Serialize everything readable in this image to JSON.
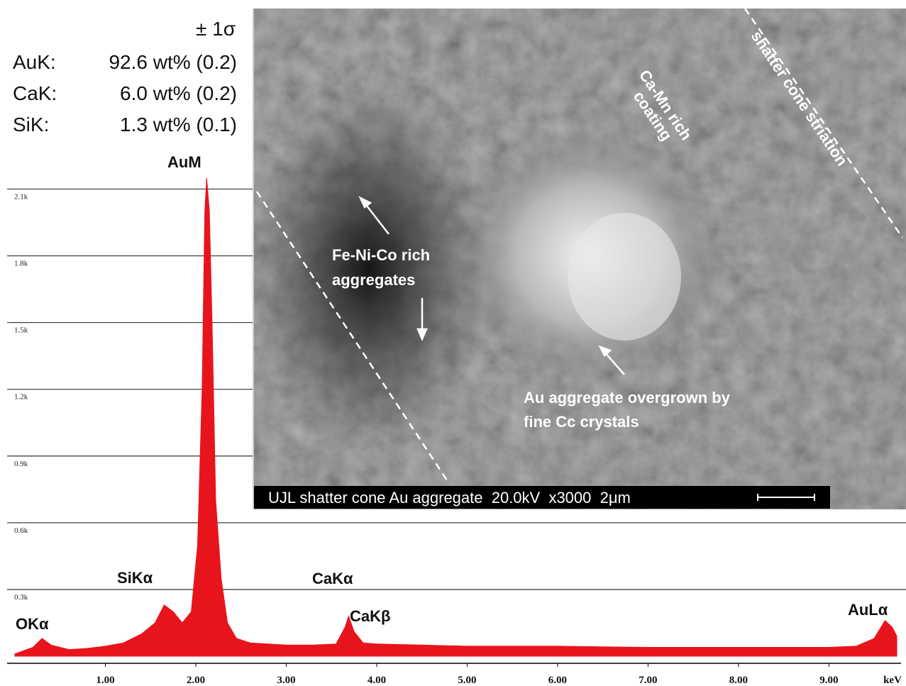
{
  "chart_data": {
    "type": "area",
    "x_label": "keV",
    "x": [
      0.0,
      0.2,
      0.3,
      0.4,
      0.6,
      0.8,
      1.0,
      1.2,
      1.4,
      1.55,
      1.65,
      1.75,
      1.85,
      1.95,
      2.02,
      2.07,
      2.1,
      2.12,
      2.15,
      2.18,
      2.22,
      2.28,
      2.35,
      2.45,
      2.6,
      2.8,
      3.0,
      3.3,
      3.55,
      3.65,
      3.69,
      3.75,
      3.85,
      4.0,
      4.5,
      5.0,
      5.5,
      6.0,
      6.5,
      7.0,
      7.5,
      8.0,
      8.5,
      9.0,
      9.3,
      9.5,
      9.62,
      9.7,
      9.75
    ],
    "values": [
      10,
      40,
      80,
      50,
      30,
      35,
      45,
      60,
      100,
      150,
      230,
      200,
      150,
      200,
      500,
      1200,
      2000,
      2150,
      2000,
      1500,
      700,
      350,
      150,
      80,
      60,
      55,
      50,
      50,
      55,
      130,
      180,
      110,
      60,
      55,
      50,
      45,
      45,
      45,
      42,
      40,
      40,
      40,
      40,
      40,
      45,
      80,
      160,
      130,
      90
    ],
    "color": "#e8141c",
    "xlim": [
      0,
      9.75
    ],
    "ylim": [
      0,
      2950
    ],
    "xticks": [
      {
        "value": 1,
        "label": "1.00"
      },
      {
        "value": 2,
        "label": "2.00"
      },
      {
        "value": 3,
        "label": "3.00"
      },
      {
        "value": 4,
        "label": "4.00"
      },
      {
        "value": 5,
        "label": "5.00"
      },
      {
        "value": 6,
        "label": "6.00"
      },
      {
        "value": 7,
        "label": "7.00"
      },
      {
        "value": 8,
        "label": "8.00"
      },
      {
        "value": 9,
        "label": "9.00"
      }
    ],
    "yticks": [
      {
        "value": 300,
        "label": "0.3k"
      },
      {
        "value": 600,
        "label": "0.6k"
      },
      {
        "value": 900,
        "label": "0.9k"
      },
      {
        "value": 1200,
        "label": "1.2k"
      },
      {
        "value": 1500,
        "label": "1.5k"
      },
      {
        "value": 1800,
        "label": "1.8k"
      },
      {
        "value": 2100,
        "label": "2.1k"
      }
    ],
    "grid": true,
    "peak_labels": [
      "OKα",
      "SiKα",
      "AuM",
      "CaKα",
      "CaKβ",
      "AuLα"
    ],
    "composition": {
      "header": "± 1σ",
      "rows": [
        {
          "element": "AuK:",
          "text": "92.6 wt% (0.2)"
        },
        {
          "element": "CaK:",
          "text": "6.0 wt% (0.2)"
        },
        {
          "element": "SiK:",
          "text": "1.3 wt% (0.1)"
        }
      ]
    }
  },
  "inset": {
    "labels": [
      "Ca-Mn rich",
      "coating",
      "shatter cone striation",
      "Fe-Ni-Co rich",
      "aggregates",
      "Au aggregate overgrown by",
      "fine Cc crystals"
    ],
    "caption": "UJL shatter cone Au aggregate  20.0kV  x3000  2μm"
  }
}
